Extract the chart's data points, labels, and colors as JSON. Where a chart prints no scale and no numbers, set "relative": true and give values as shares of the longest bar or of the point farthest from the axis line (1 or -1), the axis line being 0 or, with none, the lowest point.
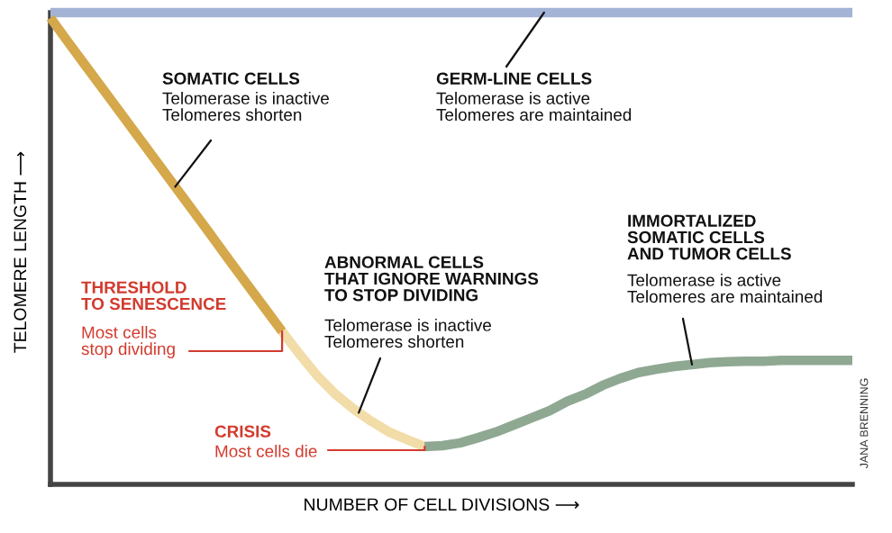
{
  "chart_data": {
    "type": "line",
    "relative": true,
    "xlabel": "NUMBER OF CELL DIVISIONS ⟶",
    "ylabel": "TELOMERE LENGTH ⟶",
    "categories": [
      null,
      null,
      null,
      null,
      null,
      null,
      null,
      null,
      null,
      null,
      null,
      null,
      null,
      null,
      null,
      null,
      null,
      null,
      null,
      null,
      null,
      null,
      null,
      null,
      null,
      null,
      null,
      null,
      null,
      null,
      null,
      null,
      null,
      null,
      null,
      null,
      null,
      null,
      null,
      null,
      null,
      null,
      null,
      null,
      null,
      null
    ],
    "series": [
      {
        "color": "#a3b3d6",
        "values": [
          1,
          1,
          1,
          1,
          1,
          1,
          1,
          1,
          1,
          1,
          1,
          1,
          1,
          1,
          1,
          1,
          1,
          1,
          1,
          1,
          1,
          1,
          1,
          1,
          1,
          1,
          1,
          1,
          1,
          1,
          1,
          1,
          1,
          1,
          1,
          1,
          1,
          1,
          1,
          1,
          1,
          1,
          1,
          1,
          1,
          1
        ]
      },
      {
        "color": "#d4a84b",
        "values": [
          0.989,
          0.937,
          0.886,
          0.835,
          0.784,
          0.733,
          0.682,
          0.631,
          0.58,
          0.529,
          0.477,
          0.426,
          0.375,
          0.324,
          null,
          null,
          null,
          null,
          null,
          null,
          null,
          null,
          null,
          null,
          null,
          null,
          null,
          null,
          null,
          null,
          null,
          null,
          null,
          null,
          null,
          null,
          null,
          null,
          null,
          null,
          null,
          null,
          null,
          null,
          null,
          null
        ]
      },
      {
        "color": "#f2dca8",
        "values": [
          null,
          null,
          null,
          null,
          null,
          null,
          null,
          null,
          null,
          null,
          null,
          null,
          null,
          0.324,
          0.275,
          0.229,
          0.191,
          0.16,
          0.134,
          0.111,
          0.095,
          0.08,
          null,
          null,
          null,
          null,
          null,
          null,
          null,
          null,
          null,
          null,
          null,
          null,
          null,
          null,
          null,
          null,
          null,
          null,
          null,
          null,
          null,
          null,
          null,
          null
        ]
      },
      {
        "color": "#8fa892",
        "values": [
          null,
          null,
          null,
          null,
          null,
          null,
          null,
          null,
          null,
          null,
          null,
          null,
          null,
          null,
          null,
          null,
          null,
          null,
          null,
          null,
          null,
          0.08,
          0.082,
          0.088,
          0.099,
          0.111,
          0.126,
          0.141,
          0.156,
          0.176,
          0.191,
          0.21,
          0.225,
          0.237,
          0.244,
          0.25,
          0.254,
          0.258,
          0.26,
          0.261,
          0.261,
          0.263,
          0.263,
          0.263,
          0.263,
          0.263
        ]
      }
    ],
    "annotations": [
      "SOMATIC CELLS",
      "Telomerase is inactive\nTelomeres shorten",
      "GERM-LINE CELLS",
      "Telomerase is active\nTelomeres are maintained",
      "ABNORMAL CELLS\nTHAT IGNORE WARNINGS\nTO STOP DIVIDING",
      "Telomerase is inactive\nTelomeres shorten",
      "IMMORTALIZED\nSOMATIC CELLS\nAND TUMOR CELLS",
      "Telomerase is active\nTelomeres are maintained",
      "THRESHOLD\nTO SENESCENCE",
      "Most cells\nstop dividing",
      "CRISIS",
      "Most cells die",
      "JANA BRENNING"
    ]
  }
}
